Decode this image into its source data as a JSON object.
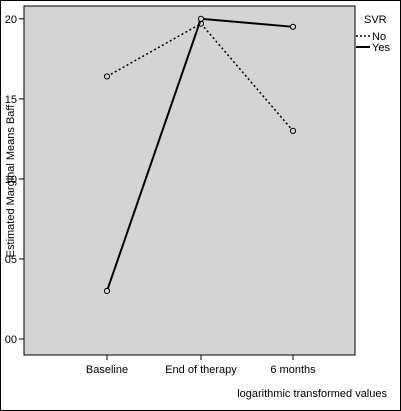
{
  "chart_data": {
    "type": "line",
    "title": "",
    "xlabel": "logarithmic transformed values",
    "ylabel": "Estimated Marginal Means Baff",
    "categories": [
      "Baseline",
      "End of therapy",
      "6 months"
    ],
    "ylim": [
      -1,
      20.8
    ],
    "yticks": [
      0,
      5,
      10,
      15,
      20
    ],
    "ytick_labels": [
      "00",
      "05",
      "10",
      "15",
      "20"
    ],
    "series": [
      {
        "name": "No",
        "style": "dotted",
        "values": [
          16.4,
          19.7,
          13.0
        ]
      },
      {
        "name": "Yes",
        "style": "solid",
        "values": [
          3.0,
          20.0,
          19.5
        ]
      }
    ],
    "legend": {
      "title": "SVR",
      "placement": "top-right"
    },
    "grid": false,
    "plot_background": "#d4d4d4",
    "line_color": "#000000"
  }
}
